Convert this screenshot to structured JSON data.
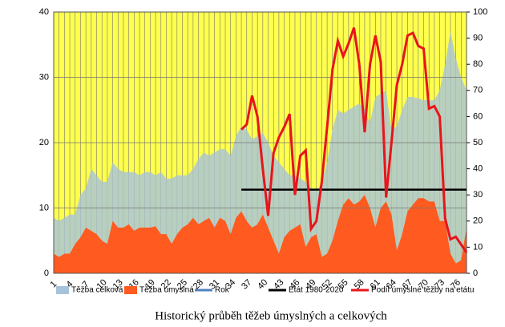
{
  "chart_data": {
    "type": "area_line",
    "title": "Historický průběh těžeb úmyslných a celkových",
    "categories": [
      1,
      null,
      null,
      4,
      null,
      null,
      7,
      null,
      null,
      10,
      null,
      null,
      13,
      null,
      null,
      16,
      null,
      null,
      19,
      null,
      null,
      22,
      null,
      null,
      25,
      null,
      null,
      28,
      null,
      null,
      31,
      null,
      null,
      34,
      null,
      null,
      37,
      null,
      null,
      40,
      null,
      null,
      43,
      null,
      null,
      46,
      null,
      null,
      49,
      null,
      null,
      52,
      null,
      null,
      55,
      null,
      null,
      58,
      null,
      null,
      61,
      null,
      null,
      64,
      null,
      null,
      67,
      null,
      null,
      70,
      null,
      null,
      73,
      null,
      null,
      76,
      null,
      null
    ],
    "ylim": [
      0,
      40
    ],
    "yticks": [
      0,
      10,
      20,
      30,
      40
    ],
    "y2lim": [
      0,
      100
    ],
    "y2ticks": [
      0,
      10,
      20,
      30,
      40,
      50,
      60,
      70,
      80,
      90,
      100
    ],
    "grid": true,
    "background": "#ffff4d",
    "series": [
      {
        "name": "Těžba celková",
        "kind": "area",
        "color": "#a7c3d9",
        "values": [
          8.5,
          8,
          8.5,
          9,
          9,
          12,
          13,
          16,
          15,
          14,
          14,
          17,
          16,
          15.5,
          15.5,
          15.5,
          15,
          15.5,
          15.5,
          15,
          15.5,
          14.5,
          14.5,
          15,
          15,
          15,
          16,
          17.5,
          18.5,
          18,
          18.5,
          19,
          19,
          18,
          21,
          22.5,
          22,
          20.5,
          21,
          21.5,
          20,
          18,
          17,
          16,
          15,
          15,
          14.5,
          14,
          13,
          12.5,
          14,
          17,
          22,
          25,
          24.5,
          25,
          25.5,
          26,
          25,
          23,
          27,
          27.5,
          28,
          22,
          22.5,
          25,
          27,
          27,
          26.8,
          26.5,
          26.5,
          26.5,
          28,
          32,
          37,
          33,
          30,
          28
        ]
      },
      {
        "name": "Těžba úmyslná",
        "kind": "area",
        "color": "#ff5a1f",
        "values": [
          3,
          2.5,
          3,
          3,
          4.5,
          5.5,
          7,
          6.5,
          6,
          5,
          4.5,
          8,
          7,
          7,
          7.5,
          6.5,
          7,
          7,
          7,
          7.2,
          6,
          6,
          4.5,
          6,
          7,
          7.5,
          8.5,
          7.5,
          8,
          8.5,
          7,
          8.5,
          8,
          6,
          8.5,
          9.5,
          8,
          7,
          7.5,
          9,
          7,
          5,
          3,
          5.5,
          6.5,
          7,
          7.5,
          4,
          5.5,
          6,
          2.5,
          3,
          5,
          8,
          10.5,
          11.5,
          10.5,
          11,
          12,
          10,
          7,
          10,
          11,
          9,
          3.5,
          6,
          9.5,
          10.5,
          11.5,
          11.5,
          11,
          11,
          8,
          8,
          3,
          1.5,
          2,
          7
        ]
      },
      {
        "name": "Rok",
        "kind": "line",
        "color": "#4f81bd",
        "values": [
          null,
          null,
          null,
          null,
          null,
          null,
          null,
          null,
          null,
          null,
          null,
          null,
          null,
          null,
          null,
          null,
          null,
          null,
          null,
          null,
          null,
          null,
          null,
          null,
          null,
          null,
          null,
          null,
          null,
          null,
          null,
          null,
          null,
          null,
          null,
          null,
          null,
          null,
          null,
          null,
          null,
          null,
          null,
          null,
          null,
          null,
          null,
          null,
          null,
          null,
          null,
          null,
          null,
          null,
          null,
          null,
          null,
          null,
          null,
          null,
          null,
          null,
          null,
          null,
          null,
          null,
          null,
          null,
          null,
          null,
          null,
          null,
          null,
          null,
          null,
          null,
          null,
          null
        ]
      },
      {
        "name": "Etát 1980-2020",
        "kind": "line",
        "axis": "y2",
        "color": "#000000",
        "values": [
          null,
          null,
          null,
          null,
          null,
          null,
          null,
          null,
          null,
          null,
          null,
          null,
          null,
          null,
          null,
          null,
          null,
          null,
          null,
          null,
          null,
          null,
          null,
          null,
          null,
          null,
          null,
          null,
          null,
          null,
          null,
          null,
          null,
          null,
          null,
          32,
          32,
          32,
          32,
          32,
          32,
          32,
          32,
          32,
          32,
          32,
          32,
          32,
          32,
          32,
          32,
          32,
          32,
          32,
          32,
          32,
          32,
          32,
          32,
          32,
          32,
          32,
          32,
          32,
          32,
          32,
          32,
          32,
          32,
          32,
          32,
          32,
          32,
          32,
          32,
          32,
          32,
          32
        ]
      },
      {
        "name": "Podíl úmyslné těžby na etátu",
        "kind": "line",
        "axis": "y2",
        "color": "#e8141b",
        "values": [
          null,
          null,
          null,
          null,
          null,
          null,
          null,
          null,
          null,
          null,
          null,
          null,
          null,
          null,
          null,
          null,
          null,
          null,
          null,
          null,
          null,
          null,
          null,
          null,
          null,
          null,
          null,
          null,
          null,
          null,
          null,
          null,
          null,
          null,
          null,
          55,
          57,
          68,
          60,
          40,
          22,
          46,
          52,
          56,
          61,
          30,
          45,
          47,
          17,
          20,
          35,
          56,
          78,
          89,
          83,
          88,
          94,
          80,
          54,
          80,
          91,
          81,
          29,
          50,
          72,
          80,
          91,
          92,
          87,
          86,
          63,
          64,
          60,
          21,
          13,
          14,
          11,
          8
        ]
      }
    ]
  }
}
